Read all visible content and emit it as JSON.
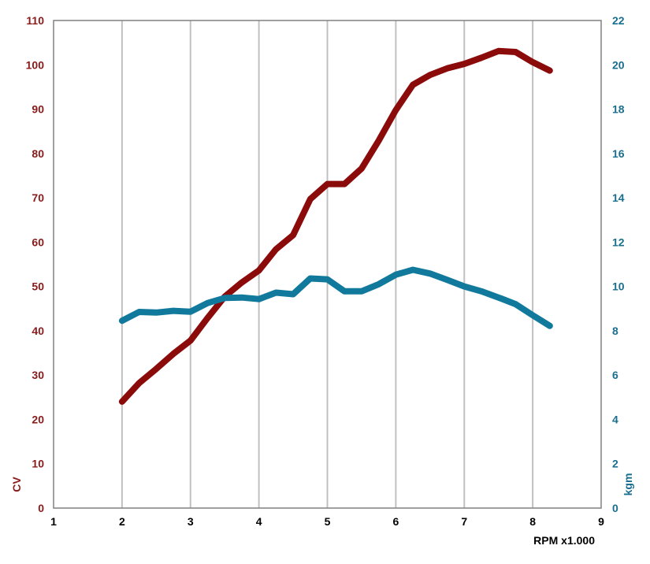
{
  "chart_data": {
    "type": "line",
    "title": "",
    "xlabel": "RPM x1.000",
    "ylabel_left": "CV",
    "ylabel_right": "kgm",
    "xlim": [
      1,
      9
    ],
    "xticks": [
      1,
      2,
      3,
      4,
      5,
      6,
      7,
      8,
      9
    ],
    "ylim_left": [
      0,
      110
    ],
    "yticks_left": [
      0,
      10,
      20,
      30,
      40,
      50,
      60,
      70,
      80,
      90,
      100,
      110
    ],
    "ylim_right": [
      0,
      22
    ],
    "yticks_right": [
      0,
      2,
      4,
      6,
      8,
      10,
      12,
      14,
      16,
      18,
      20,
      22
    ],
    "grid": "vertical",
    "colors": {
      "left": "#8b0a0a",
      "right": "#117a9c",
      "left_text": "#8b1a1a",
      "right_text": "#1a6e8e",
      "grid": "#c0c0c0",
      "frame": "#808080"
    },
    "series": [
      {
        "axis": "left",
        "x": [
          2,
          2.25,
          2.5,
          2.75,
          3,
          3.25,
          3.5,
          3.75,
          4,
          4.25,
          4.5,
          4.75,
          5,
          5.25,
          5.5,
          5.75,
          6,
          6.25,
          6.5,
          6.75,
          7,
          7.25,
          7.5,
          7.75,
          8,
          8.25
        ],
        "y": [
          24,
          28.2,
          31.4,
          34.8,
          37.8,
          42.9,
          47.7,
          50.9,
          53.6,
          58.4,
          61.6,
          69.7,
          73.1,
          73.1,
          76.6,
          82.9,
          89.8,
          95.5,
          97.7,
          99.2,
          100.2,
          101.6,
          103.1,
          102.9,
          100.6,
          98.7
        ]
      },
      {
        "axis": "right",
        "x": [
          2,
          2.25,
          2.5,
          2.75,
          3,
          3.25,
          3.5,
          3.75,
          4,
          4.25,
          4.5,
          4.75,
          5,
          5.25,
          5.5,
          5.75,
          6,
          6.25,
          6.5,
          6.75,
          7,
          7.25,
          7.5,
          7.75,
          8,
          8.25
        ],
        "y": [
          8.45,
          8.85,
          8.82,
          8.9,
          8.86,
          9.25,
          9.48,
          9.5,
          9.43,
          9.72,
          9.65,
          10.36,
          10.32,
          9.78,
          9.78,
          10.1,
          10.53,
          10.75,
          10.58,
          10.3,
          10.0,
          9.78,
          9.5,
          9.2,
          8.7,
          8.22
        ]
      }
    ]
  }
}
